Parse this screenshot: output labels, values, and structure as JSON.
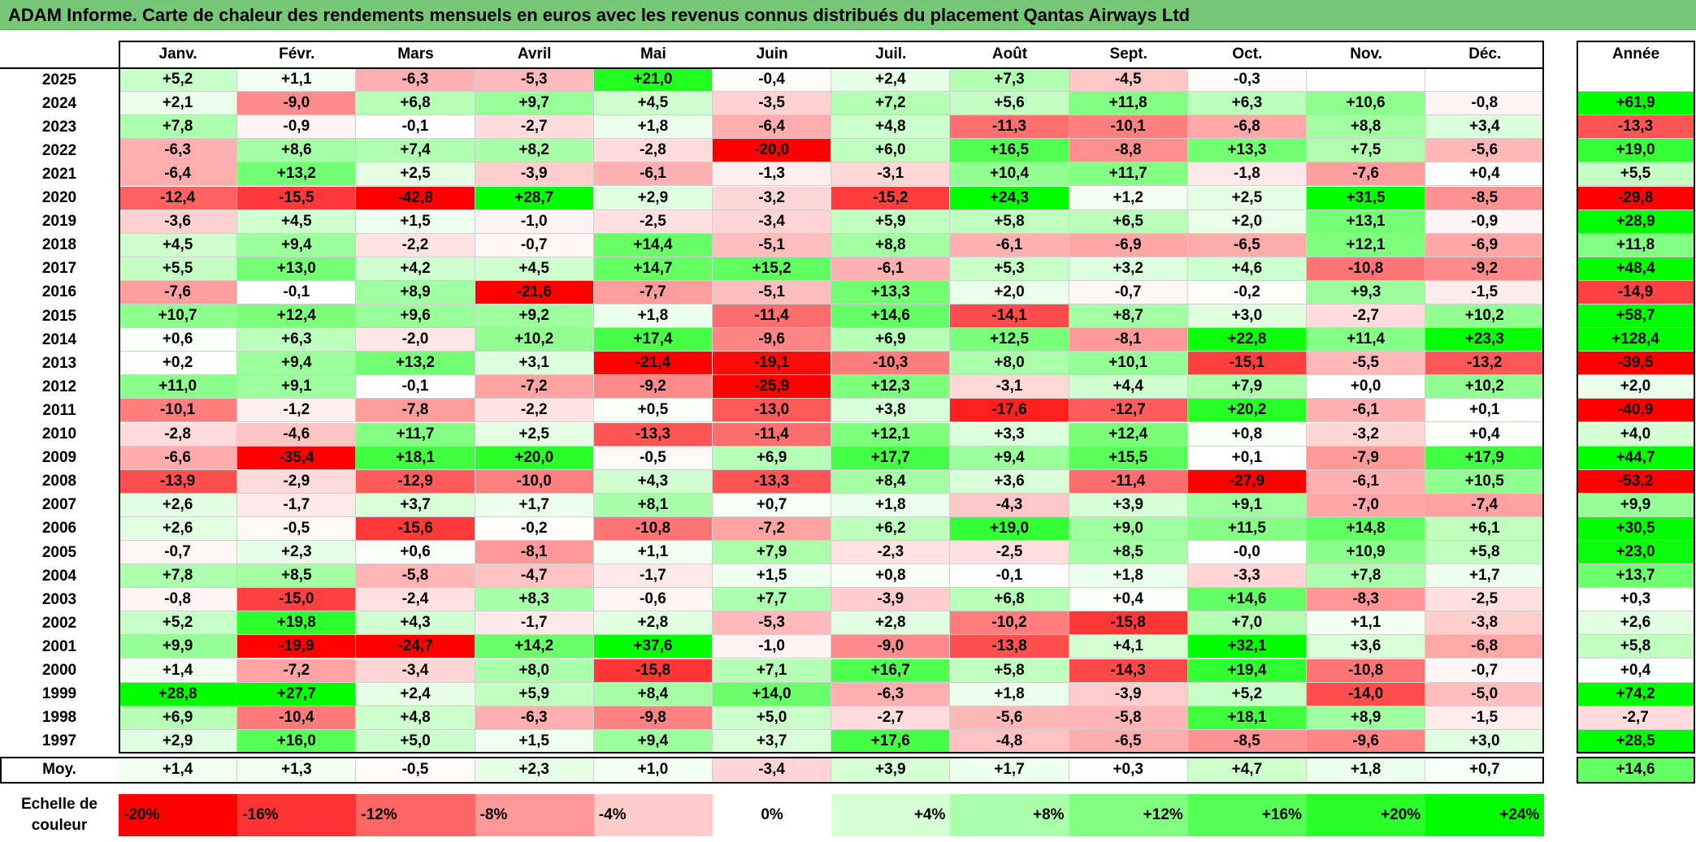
{
  "title": "ADAM Informe. Carte de chaleur des rendements mensuels en euros avec les revenus connus distribués du placement Qantas Airways Ltd",
  "chart_data": {
    "type": "heatmap",
    "title": "ADAM Informe. Carte de chaleur des rendements mensuels en euros avec les revenus connus distribués du placement Qantas Airways Ltd",
    "columns": [
      "Janv.",
      "Févr.",
      "Mars",
      "Avril",
      "Mai",
      "Juin",
      "Juil.",
      "Août",
      "Sept.",
      "Oct.",
      "Nov.",
      "Déc."
    ],
    "annual_header": "Année",
    "rows": [
      {
        "year": "2025",
        "values": [
          "+5,2",
          "+1,1",
          "-6,3",
          "-5,3",
          "+21,0",
          "-0,4",
          "+2,4",
          "+7,3",
          "-4,5",
          "-0,3",
          "",
          ""
        ],
        "annual": ""
      },
      {
        "year": "2024",
        "values": [
          "+2,1",
          "-9,0",
          "+6,8",
          "+9,7",
          "+4,5",
          "-3,5",
          "+7,2",
          "+5,6",
          "+11,8",
          "+6,3",
          "+10,6",
          "-0,8"
        ],
        "annual": "+61,9"
      },
      {
        "year": "2023",
        "values": [
          "+7,8",
          "-0,9",
          "-0,1",
          "-2,7",
          "+1,8",
          "-6,4",
          "+4,8",
          "-11,3",
          "-10,1",
          "-6,8",
          "+8,8",
          "+3,4"
        ],
        "annual": "-13,3"
      },
      {
        "year": "2022",
        "values": [
          "-6,3",
          "+8,6",
          "+7,4",
          "+8,2",
          "-2,8",
          "-20,0",
          "+6,0",
          "+16,5",
          "-8,8",
          "+13,3",
          "+7,5",
          "-5,6"
        ],
        "annual": "+19,0"
      },
      {
        "year": "2021",
        "values": [
          "-6,4",
          "+13,2",
          "+2,5",
          "-3,9",
          "-6,1",
          "-1,3",
          "-3,1",
          "+10,4",
          "+11,7",
          "-1,8",
          "-7,6",
          "+0,4"
        ],
        "annual": "+5,5"
      },
      {
        "year": "2020",
        "values": [
          "-12,4",
          "-15,5",
          "-42,8",
          "+28,7",
          "+2,9",
          "-3,2",
          "-15,2",
          "+24,3",
          "+1,2",
          "+2,5",
          "+31,5",
          "-8,5"
        ],
        "annual": "-29,8"
      },
      {
        "year": "2019",
        "values": [
          "-3,6",
          "+4,5",
          "+1,5",
          "-1,0",
          "-2,5",
          "-3,4",
          "+5,9",
          "+5,8",
          "+6,5",
          "+2,0",
          "+13,1",
          "-0,9"
        ],
        "annual": "+28,9"
      },
      {
        "year": "2018",
        "values": [
          "+4,5",
          "+9,4",
          "-2,2",
          "-0,7",
          "+14,4",
          "-5,1",
          "+8,8",
          "-6,1",
          "-6,9",
          "-6,5",
          "+12,1",
          "-6,9"
        ],
        "annual": "+11,8"
      },
      {
        "year": "2017",
        "values": [
          "+5,5",
          "+13,0",
          "+4,2",
          "+4,5",
          "+14,7",
          "+15,2",
          "-6,1",
          "+5,3",
          "+3,2",
          "+4,6",
          "-10,8",
          "-9,2"
        ],
        "annual": "+48,4"
      },
      {
        "year": "2016",
        "values": [
          "-7,6",
          "-0,1",
          "+8,9",
          "-21,6",
          "-7,7",
          "-5,1",
          "+13,3",
          "+2,0",
          "-0,7",
          "-0,2",
          "+9,3",
          "-1,5"
        ],
        "annual": "-14,9"
      },
      {
        "year": "2015",
        "values": [
          "+10,7",
          "+12,4",
          "+9,6",
          "+9,2",
          "+1,8",
          "-11,4",
          "+14,6",
          "-14,1",
          "+8,7",
          "+3,0",
          "-2,7",
          "+10,2"
        ],
        "annual": "+58,7"
      },
      {
        "year": "2014",
        "values": [
          "+0,6",
          "+6,3",
          "-2,0",
          "+10,2",
          "+17,4",
          "-9,6",
          "+6,9",
          "+12,5",
          "-8,1",
          "+22,8",
          "+11,4",
          "+23,3"
        ],
        "annual": "+128,4"
      },
      {
        "year": "2013",
        "values": [
          "+0,2",
          "+9,4",
          "+13,2",
          "+3,1",
          "-21,4",
          "-19,1",
          "-10,3",
          "+8,0",
          "+10,1",
          "-15,1",
          "-5,5",
          "-13,2"
        ],
        "annual": "-39,5"
      },
      {
        "year": "2012",
        "values": [
          "+11,0",
          "+9,1",
          "-0,1",
          "-7,2",
          "-9,2",
          "-25,9",
          "+12,3",
          "-3,1",
          "+4,4",
          "+7,9",
          "+0,0",
          "+10,2"
        ],
        "annual": "+2,0"
      },
      {
        "year": "2011",
        "values": [
          "-10,1",
          "-1,2",
          "-7,8",
          "-2,2",
          "+0,5",
          "-13,0",
          "+3,8",
          "-17,6",
          "-12,7",
          "+20,2",
          "-6,1",
          "+0,1"
        ],
        "annual": "-40,9"
      },
      {
        "year": "2010",
        "values": [
          "-2,8",
          "-4,6",
          "+11,7",
          "+2,5",
          "-13,3",
          "-11,4",
          "+12,1",
          "+3,3",
          "+12,4",
          "+0,8",
          "-3,2",
          "+0,4"
        ],
        "annual": "+4,0"
      },
      {
        "year": "2009",
        "values": [
          "-6,6",
          "-35,4",
          "+18,1",
          "+20,0",
          "-0,5",
          "+6,9",
          "+17,7",
          "+9,4",
          "+15,5",
          "+0,1",
          "-7,9",
          "+17,9"
        ],
        "annual": "+44,7"
      },
      {
        "year": "2008",
        "values": [
          "-13,9",
          "-2,9",
          "-12,9",
          "-10,0",
          "+4,3",
          "-13,3",
          "+8,4",
          "+3,6",
          "-11,4",
          "-27,9",
          "-6,1",
          "+10,5"
        ],
        "annual": "-53,2"
      },
      {
        "year": "2007",
        "values": [
          "+2,6",
          "-1,7",
          "+3,7",
          "+1,7",
          "+8,1",
          "+0,7",
          "+1,8",
          "-4,3",
          "+3,9",
          "+9,1",
          "-7,0",
          "-7,4"
        ],
        "annual": "+9,9"
      },
      {
        "year": "2006",
        "values": [
          "+2,6",
          "-0,5",
          "-15,6",
          "-0,2",
          "-10,8",
          "-7,2",
          "+6,2",
          "+19,0",
          "+9,0",
          "+11,5",
          "+14,8",
          "+6,1"
        ],
        "annual": "+30,5"
      },
      {
        "year": "2005",
        "values": [
          "-0,7",
          "+2,3",
          "+0,6",
          "-8,1",
          "+1,1",
          "+7,9",
          "-2,3",
          "-2,5",
          "+8,5",
          "-0,0",
          "+10,9",
          "+5,8"
        ],
        "annual": "+23,0"
      },
      {
        "year": "2004",
        "values": [
          "+7,8",
          "+8,5",
          "-5,8",
          "-4,7",
          "-1,7",
          "+1,5",
          "+0,8",
          "-0,1",
          "+1,8",
          "-3,3",
          "+7,8",
          "+1,7"
        ],
        "annual": "+13,7"
      },
      {
        "year": "2003",
        "values": [
          "-0,8",
          "-15,0",
          "-2,4",
          "+8,3",
          "-0,6",
          "+7,7",
          "-3,9",
          "+6,8",
          "+0,4",
          "+14,6",
          "-8,3",
          "-2,5"
        ],
        "annual": "+0,3"
      },
      {
        "year": "2002",
        "values": [
          "+5,2",
          "+19,8",
          "+4,3",
          "-1,7",
          "+2,8",
          "-5,3",
          "+2,8",
          "-10,2",
          "-15,8",
          "+7,0",
          "+1,1",
          "-3,8"
        ],
        "annual": "+2,6"
      },
      {
        "year": "2001",
        "values": [
          "+9,9",
          "-19,9",
          "-24,7",
          "+14,2",
          "+37,6",
          "-1,0",
          "-9,0",
          "-13,8",
          "+4,1",
          "+32,1",
          "+3,6",
          "-6,8"
        ],
        "annual": "+5,8"
      },
      {
        "year": "2000",
        "values": [
          "+1,4",
          "-7,2",
          "-3,4",
          "+8,0",
          "-15,8",
          "+7,1",
          "+16,7",
          "+5,8",
          "-14,3",
          "+19,4",
          "-10,8",
          "-0,7"
        ],
        "annual": "+0,4"
      },
      {
        "year": "1999",
        "values": [
          "+28,8",
          "+27,7",
          "+2,4",
          "+5,9",
          "+8,4",
          "+14,0",
          "-6,3",
          "+1,8",
          "-3,9",
          "+5,2",
          "-14,0",
          "-5,0"
        ],
        "annual": "+74,2"
      },
      {
        "year": "1998",
        "values": [
          "+6,9",
          "-10,4",
          "+4,8",
          "-6,3",
          "-9,8",
          "+5,0",
          "-2,7",
          "-5,6",
          "-5,8",
          "+18,1",
          "+8,9",
          "-1,5"
        ],
        "annual": "-2,7"
      },
      {
        "year": "1997",
        "values": [
          "+2,9",
          "+16,0",
          "+5,0",
          "+1,5",
          "+9,4",
          "+3,7",
          "+17,6",
          "-4,8",
          "-6,5",
          "-8,5",
          "-9,6",
          "+3,0"
        ],
        "annual": "+28,5"
      }
    ],
    "average": {
      "label": "Moy.",
      "values": [
        "+1,4",
        "+1,3",
        "-0,5",
        "+2,3",
        "+1,0",
        "-3,4",
        "+3,9",
        "+1,7",
        "+0,3",
        "+4,7",
        "+1,8",
        "+0,7"
      ],
      "annual": "+14,6"
    },
    "color_scale": {
      "title_line1": "Echelle de",
      "title_line2": "couleur",
      "stops": [
        "-20%",
        "-16%",
        "-12%",
        "-8%",
        "-4%",
        "0%",
        "+4%",
        "+8%",
        "+12%",
        "+16%",
        "+20%",
        "+24%"
      ],
      "stop_values": [
        -20,
        -16,
        -12,
        -8,
        -4,
        0,
        4,
        8,
        12,
        16,
        20,
        24
      ],
      "negative_color": "#ff0000",
      "neutral_color": "#ffffff",
      "positive_color": "#00ff00"
    }
  }
}
